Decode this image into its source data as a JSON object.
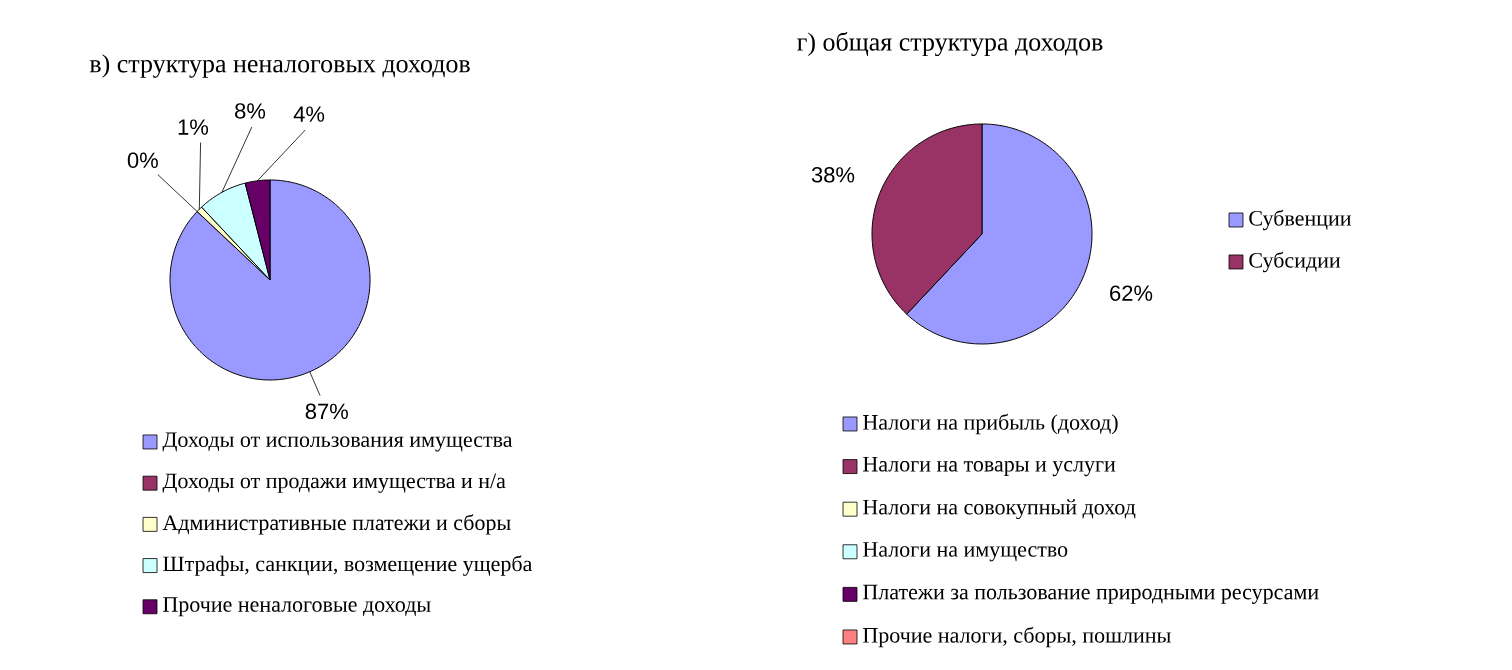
{
  "chart_data": [
    {
      "type": "pie",
      "title": "в) структура неналоговых доходов",
      "categories": [
        "Доходы от использования имущества",
        "Доходы от продажи имущества и н/а",
        "Административные платежи и сборы",
        "Штрафы, санкции, возмещение ущерба",
        "Прочие неналоговые доходы"
      ],
      "values": [
        87,
        0,
        1,
        8,
        4
      ],
      "colors": [
        "#9999ff",
        "#993366",
        "#ffffcc",
        "#ccffff",
        "#660066"
      ],
      "value_labels": [
        "87%",
        "0%",
        "1%",
        "8%",
        "4%"
      ],
      "legend": "bottom"
    },
    {
      "type": "pie",
      "title": "г) общая структура доходов",
      "categories": [
        "Субвенции",
        "Субсидии"
      ],
      "values": [
        62,
        38
      ],
      "colors": [
        "#9999ff",
        "#993366"
      ],
      "value_labels": [
        "62%",
        "38%"
      ],
      "legend": "right"
    },
    {
      "type": "other",
      "categories": [
        "Налоги на прибыль (доход)",
        "Налоги на товары и услуги",
        "Налоги на совокупный доход",
        "Налоги на имущество",
        "Платежи за пользование природными ресурсами",
        "Прочие налоги, сборы, пошлины"
      ],
      "colors": [
        "#9999ff",
        "#993366",
        "#ffffcc",
        "#ccffff",
        "#660066",
        "#ff8080"
      ]
    }
  ]
}
